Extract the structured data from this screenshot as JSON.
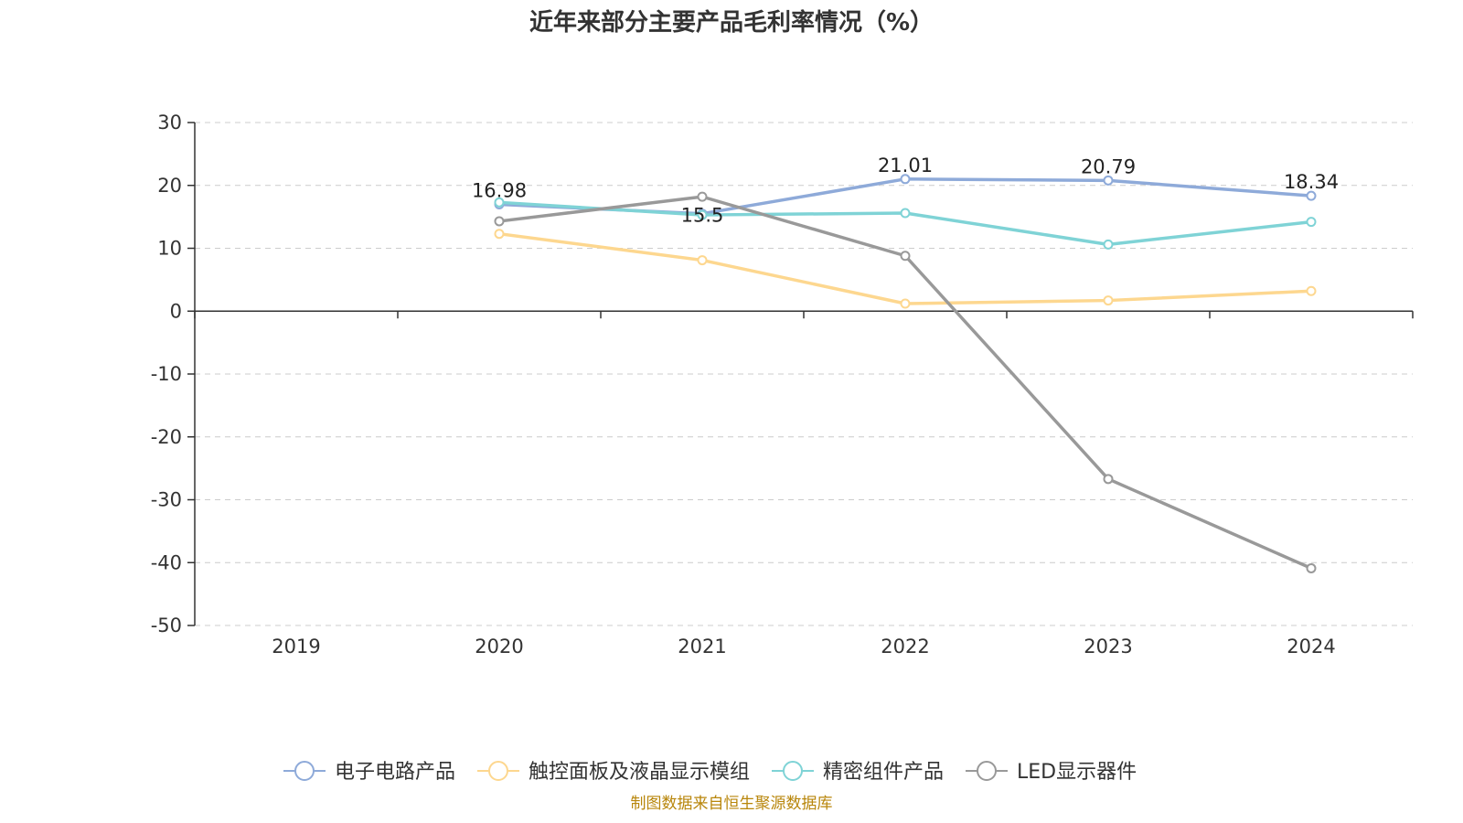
{
  "source_note": "制图数据来自恒生聚源数据库",
  "chart_data": {
    "type": "line",
    "title": "近年来部分主要产品毛利率情况（%）",
    "xlabel": "",
    "ylabel": "",
    "x": [
      "2019",
      "2020",
      "2021",
      "2022",
      "2023",
      "2024"
    ],
    "ylim": [
      -50,
      30
    ],
    "yticks": [
      "30",
      "20",
      "10",
      "0",
      "-10",
      "-20",
      "-30",
      "-40",
      "-50"
    ],
    "grid": "horizontal-dashed",
    "legend_position": "bottom",
    "series": [
      {
        "name": "电子电路产品",
        "color": "#8eaad9",
        "values": [
          null,
          16.98,
          15.5,
          21.01,
          20.79,
          18.34
        ],
        "labels": [
          "",
          "16.98",
          "15.5",
          "21.01",
          "20.79",
          "18.34"
        ]
      },
      {
        "name": "触控面板及液晶显示模组",
        "color": "#fdd78f",
        "values": [
          null,
          12.3,
          8.1,
          1.2,
          1.7,
          3.2
        ],
        "labels": [
          "",
          "",
          "",
          "",
          "",
          ""
        ]
      },
      {
        "name": "精密组件产品",
        "color": "#7fd3d6",
        "values": [
          null,
          17.3,
          15.3,
          15.6,
          10.6,
          14.2
        ],
        "labels": [
          "",
          "",
          "",
          "",
          "",
          ""
        ]
      },
      {
        "name": "LED显示器件",
        "color": "#999999",
        "values": [
          null,
          14.3,
          18.2,
          8.8,
          -26.7,
          -40.9
        ],
        "labels": [
          "",
          "",
          "",
          "",
          "",
          ""
        ]
      }
    ]
  }
}
